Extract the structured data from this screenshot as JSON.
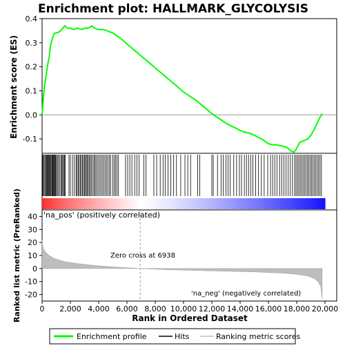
{
  "chart_data": {
    "type": "line",
    "title": "Enrichment plot: HALLMARK_GLYCOLYSIS",
    "panels": {
      "enrichment": {
        "ylabel": "Enrichment score (ES)",
        "ylim": [
          -0.16,
          0.4
        ],
        "yticks": [
          "0.4",
          "0.3",
          "0.2",
          "0.1",
          "0.0",
          "-0.1"
        ],
        "series": [
          {
            "name": "Enrichment profile",
            "color": "#00ff00",
            "x": [
              0,
              100,
              200,
              300,
              400,
              500,
              600,
              700,
              800,
              900,
              1000,
              1200,
              1400,
              1600,
              1700,
              1800,
              2000,
              2200,
              2500,
              2800,
              3000,
              3200,
              3400,
              3500,
              3700,
              4000,
              4300,
              4600,
              4800,
              5000,
              5500,
              6000,
              6500,
              7000,
              7500,
              8000,
              8500,
              9000,
              9500,
              10000,
              10500,
              11000,
              11500,
              12000,
              12500,
              13000,
              13500,
              14000,
              14300,
              14600,
              15000,
              15500,
              16000,
              16300,
              16600,
              17000,
              17300,
              17600,
              17800,
              18000,
              18200,
              18400,
              18600,
              18800,
              19000,
              19200,
              19400,
              19600,
              19800
            ],
            "y": [
              0.0,
              0.08,
              0.13,
              0.17,
              0.21,
              0.24,
              0.29,
              0.31,
              0.33,
              0.34,
              0.34,
              0.345,
              0.355,
              0.37,
              0.365,
              0.36,
              0.36,
              0.355,
              0.36,
              0.355,
              0.36,
              0.36,
              0.365,
              0.37,
              0.36,
              0.355,
              0.355,
              0.35,
              0.345,
              0.34,
              0.32,
              0.295,
              0.27,
              0.245,
              0.22,
              0.195,
              0.17,
              0.145,
              0.12,
              0.095,
              0.075,
              0.055,
              0.03,
              0.005,
              -0.015,
              -0.035,
              -0.05,
              -0.065,
              -0.072,
              -0.075,
              -0.085,
              -0.1,
              -0.12,
              -0.125,
              -0.125,
              -0.13,
              -0.135,
              -0.15,
              -0.155,
              -0.14,
              -0.115,
              -0.11,
              -0.105,
              -0.1,
              -0.085,
              -0.065,
              -0.04,
              -0.015,
              0.005
            ]
          }
        ]
      },
      "hits": {
        "name": "Hits",
        "positions": [
          30,
          80,
          140,
          200,
          260,
          310,
          370,
          410,
          470,
          520,
          560,
          620,
          680,
          720,
          760,
          800,
          850,
          900,
          950,
          1010,
          1080,
          1150,
          1240,
          1330,
          1400,
          1460,
          1520,
          1580,
          1640,
          1900,
          2000,
          2150,
          2280,
          2400,
          2470,
          2550,
          2620,
          2700,
          2770,
          2850,
          2920,
          3000,
          3060,
          3130,
          3200,
          3270,
          3350,
          3420,
          3500,
          3600,
          3680,
          3760,
          3850,
          3950,
          4050,
          4150,
          4250,
          4350,
          4450,
          4550,
          4650,
          4750,
          4850,
          5000,
          5100,
          5200,
          5300,
          5400,
          5900,
          6050,
          6200,
          6350,
          6550,
          6700,
          6850,
          7200,
          7350,
          7900,
          8100,
          8350,
          8550,
          8700,
          8900,
          9100,
          9300,
          9500,
          9800,
          10100,
          10300,
          10500,
          11000,
          11150,
          12000,
          12100,
          12400,
          12650,
          12800,
          13000,
          13150,
          13300,
          13550,
          13750,
          13950,
          14100,
          14300,
          14450,
          14600,
          14750,
          14900,
          15100,
          15300,
          15500,
          15700,
          15950,
          16150,
          16300,
          16450,
          16600,
          16800,
          16950,
          17100,
          17250,
          17400,
          17550,
          17700,
          17850,
          17950,
          18050,
          18150,
          18250,
          18350,
          18450,
          18550,
          18650,
          18750,
          18850,
          18950,
          19050,
          19150,
          19250,
          19350,
          19450,
          19550,
          19650,
          19750
        ]
      },
      "ranked_metric": {
        "name": "Ranking metric scores",
        "ylabel": "Ranked list metric (PreRanked)",
        "xlabel": "Rank in Ordered Dataset",
        "ylim": [
          -25,
          45
        ],
        "yticks": [
          "40",
          "30",
          "20",
          "10",
          "0",
          "-10",
          "-20"
        ],
        "xticks": [
          "0",
          "2,000",
          "4,000",
          "6,000",
          "8,000",
          "10,000",
          "12,000",
          "14,000",
          "16,000",
          "18,000",
          "20,000"
        ],
        "xlim": [
          0,
          20000
        ],
        "x": [
          0,
          50,
          150,
          300,
          500,
          800,
          1200,
          1700,
          2500,
          3500,
          5000,
          6938,
          9000,
          12000,
          15000,
          17000,
          18000,
          18800,
          19200,
          19500,
          19700,
          19800
        ],
        "y": [
          22,
          17,
          14,
          12,
          10,
          8,
          6.5,
          5,
          3.8,
          2.5,
          1.2,
          0,
          -1,
          -1.8,
          -2.6,
          -3.5,
          -4.5,
          -5.8,
          -7.5,
          -10,
          -14,
          -23
        ]
      },
      "zero_cross": 6938
    },
    "annotations": {
      "pos": "'na_pos' (positively correlated)",
      "neg": "'na_neg' (negatively correlated)",
      "zero_cross": "Zero cross at 6938"
    },
    "legend": {
      "placement": "bottom",
      "items": [
        "Enrichment profile",
        "Hits",
        "Ranking metric scores"
      ]
    },
    "colors": {
      "profile": "#00ff00",
      "pos_annotation": "#cc0000",
      "neg_annotation": "#0000cc"
    }
  }
}
